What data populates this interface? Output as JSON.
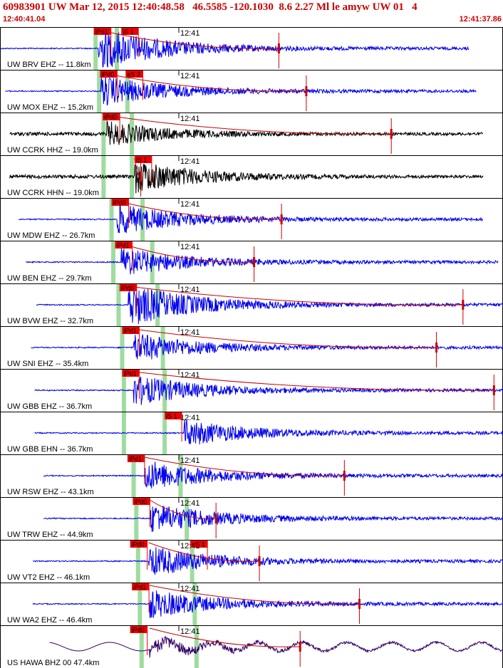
{
  "header": {
    "title": "60983901 UW Mar 12, 2015 12:40:48.58   46.5585 -120.1030  8.6 2.27 Ml le amyw UW 01   4",
    "start_time": "12:40:41.04",
    "end_time": "12:41:37.86"
  },
  "colors": {
    "blue_trace": "#0000ee",
    "black_trace": "#000000",
    "purple_trace": "#330066",
    "pick_box": "#ee0000",
    "theoretical_band": "#9fdc9f",
    "coda_curve": "#cc0000",
    "header_text": "#cc0000"
  },
  "chart_data": {
    "type": "line",
    "title": "",
    "time_axis": {
      "start": "12:40:41.04",
      "end": "12:41:37.86",
      "duration_s": 56.82,
      "tick_label": "12:41",
      "tick_time": "12:41:00"
    },
    "channels": [
      {
        "label": "UW BRV EHZ -- 11.8km",
        "color": "blue",
        "trace_start": 0.0,
        "trace_end": 53.0,
        "onset": 11.1,
        "amplitude": 1.0,
        "picks": [
          {
            "label": "iPd1",
            "t": 10.6
          },
          {
            "label": "iS 1",
            "t": 13.7
          }
        ],
        "p_band": 10.8,
        "s_band": 13.2,
        "coda_end": 31.5,
        "tick": 20.2
      },
      {
        "label": "UW MOX EHZ -- 15.2km",
        "color": "blue",
        "trace_start": 0.6,
        "trace_end": 53.8,
        "onset": 11.4,
        "amplitude": 0.7,
        "picks": [
          {
            "label": "iPd0",
            "t": 11.3
          },
          {
            "label": "eS 2",
            "t": 14.2
          }
        ],
        "p_band": 11.2,
        "s_band": 14.4,
        "coda_end": 34.6,
        "tick": 20.2
      },
      {
        "label": "UW CCRK HHZ -- 19.0km",
        "color": "black",
        "trace_start": 1.1,
        "trace_end": 54.6,
        "onset": 12.0,
        "amplitude": 0.55,
        "picks": [
          {
            "label": "iPd0",
            "t": 11.6
          }
        ],
        "p_band": 11.7,
        "s_band": 14.9,
        "coda_end": 44.2,
        "tick": 20.2
      },
      {
        "label": "UW CCRK HHN -- 19.0km",
        "color": "black",
        "trace_start": 1.1,
        "trace_end": 54.6,
        "onset": 15.2,
        "amplitude": 0.75,
        "picks": [
          {
            "label": "iS 1",
            "t": 15.2
          }
        ],
        "p_band": 11.7,
        "s_band": 14.9,
        "coda_end": 15.9,
        "tick": 20.2
      },
      {
        "label": "UW MDW EHZ -- 26.7km",
        "color": "blue",
        "trace_start": 2.1,
        "trace_end": 54.6,
        "onset": 13.2,
        "amplitude": 0.7,
        "picks": [
          {
            "label": "iPd0",
            "t": 12.6
          }
        ],
        "p_band": 12.6,
        "s_band": 16.1,
        "coda_end": 31.8,
        "tick": 20.2
      },
      {
        "label": "UW BEN EHZ -- 29.7km",
        "color": "blue",
        "trace_start": 2.9,
        "trace_end": 56.3,
        "onset": 13.7,
        "amplitude": 0.65,
        "picks": [
          {
            "label": "iPd1",
            "t": 13.0
          }
        ],
        "p_band": 12.8,
        "s_band": 17.2,
        "coda_end": 28.7,
        "tick": 20.2
      },
      {
        "label": "UW BVW EHZ -- 32.7km",
        "color": "blue",
        "trace_start": 4.1,
        "trace_end": 56.9,
        "onset": 14.5,
        "amplitude": 1.0,
        "picks": [
          {
            "label": "iPd0",
            "t": 13.5
          }
        ],
        "p_band": 13.4,
        "s_band": 17.8,
        "coda_end": 52.3,
        "tick": 20.2
      },
      {
        "label": "UW SNI EHZ -- 35.4km",
        "color": "blue",
        "trace_start": 3.5,
        "trace_end": 57.1,
        "onset": 15.1,
        "amplitude": 0.65,
        "picks": [
          {
            "label": "iPd1",
            "t": 13.8
          }
        ],
        "p_band": 13.8,
        "s_band": 18.4,
        "coda_end": 49.3,
        "tick": 20.2
      },
      {
        "label": "UW GBB EHZ -- 36.7km",
        "color": "blue",
        "trace_start": 3.9,
        "trace_end": 57.3,
        "onset": 15.1,
        "amplitude": 0.7,
        "picks": [
          {
            "label": "iPd1",
            "t": 13.8
          }
        ],
        "p_band": 14.0,
        "s_band": 18.6,
        "coda_end": 55.8,
        "tick": 20.2
      },
      {
        "label": "UW GBB EHN -- 36.7km",
        "color": "blue",
        "trace_start": 3.9,
        "trace_end": 57.3,
        "onset": 20.8,
        "amplitude": 0.6,
        "picks": [
          {
            "label": "iS 1",
            "t": 18.6
          }
        ],
        "p_band": 14.0,
        "s_band": 18.6,
        "coda_end": 20.9,
        "tick": 20.2
      },
      {
        "label": "UW RSW EHZ -- 43.1km",
        "color": "blue",
        "trace_start": 4.9,
        "trace_end": 57.3,
        "onset": 16.3,
        "amplitude": 0.7,
        "picks": [
          {
            "label": "iPd1",
            "t": 14.4
          }
        ],
        "p_band": 15.1,
        "s_band": 20.4,
        "coda_end": 38.9,
        "tick": 20.2
      },
      {
        "label": "UW TRW EHZ -- 44.9km",
        "color": "blue",
        "trace_start": 4.9,
        "trace_end": 57.3,
        "onset": 16.9,
        "amplitude": 0.7,
        "picks": [
          {
            "label": "iPd0",
            "t": 15.0
          }
        ],
        "p_band": 15.4,
        "s_band": 21.1,
        "coda_end": 24.4,
        "tick": 20.2
      },
      {
        "label": "UW VT2 EHZ -- 46.1km",
        "color": "blue",
        "trace_start": 3.7,
        "trace_end": 57.3,
        "onset": 16.8,
        "amplitude": 0.7,
        "picks": [
          {
            "label": "iPd0",
            "t": 14.7
          },
          {
            "label": "eS 1",
            "t": 21.5
          }
        ],
        "p_band": 15.6,
        "s_band": 21.7,
        "coda_end": 29.3,
        "tick": 20.2
      },
      {
        "label": "UW WA2 EHZ -- 46.4km",
        "color": "blue",
        "trace_start": 3.7,
        "trace_end": 57.3,
        "onset": 16.9,
        "amplitude": 0.65,
        "picks": [
          {
            "label": "iPd1",
            "t": 14.9
          }
        ],
        "p_band": 15.8,
        "s_band": 22.0,
        "coda_end": 40.6,
        "tick": 20.2
      },
      {
        "label": "US HAWA BHZ 00 47.4km",
        "color": "purple",
        "trace_start": 5.6,
        "trace_end": 57.3,
        "onset": 16.9,
        "amplitude": 0.45,
        "picks": [
          {
            "label": "iPd0",
            "t": 14.7
          }
        ],
        "p_band": 16.0,
        "s_band": 22.2,
        "coda_end": 33.9,
        "tick": 20.2
      }
    ]
  }
}
